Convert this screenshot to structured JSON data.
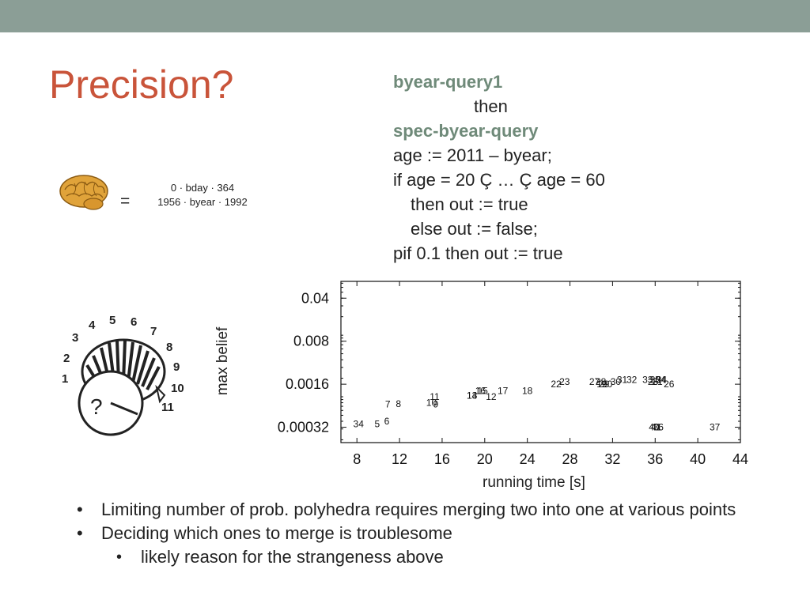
{
  "slide": {
    "title": "Precision?",
    "code": {
      "line1": "byear-query1",
      "line2": "then",
      "line3": "spec-byear-query",
      "line4": "age := 2011 – byear;",
      "line5": "if age = 20 Ç … Ç age = 60",
      "line6": "then out := true",
      "line7": "else out := false;",
      "line8": "pif 0.1 then out := true"
    },
    "equals": "=",
    "constraints": [
      "0 · bday · 364",
      "1956 · byear · 1992"
    ],
    "dial": {
      "numbers": [
        "1",
        "2",
        "3",
        "4",
        "5",
        "6",
        "7",
        "8",
        "9",
        "10",
        "11"
      ],
      "question": "?"
    },
    "bullets": [
      "Limiting number of prob. polyhedra requires merging two into one at various points",
      "Deciding which ones to merge is troublesome"
    ],
    "subbullets": [
      "likely reason for the strangeness above"
    ]
  },
  "colors": {
    "title": "#c9543a",
    "topbar": "#8b9e96",
    "keyword": "#6f8a79"
  },
  "chart_data": {
    "type": "scatter",
    "xlabel": "running time [s]",
    "ylabel": "max belief",
    "xlim": [
      6.5,
      44
    ],
    "ylim_log": [
      0.00018,
      0.075
    ],
    "x_ticks": [
      8,
      12,
      16,
      20,
      24,
      28,
      32,
      36,
      40,
      44
    ],
    "y_ticks": [
      0.04,
      0.008,
      0.0016,
      0.00032
    ],
    "y_tick_labels": [
      "0.04",
      "0.008",
      "0.0016",
      "0.00032"
    ],
    "marker": "point index label",
    "points": [
      {
        "label": "3",
        "x": 7.9,
        "y": 0.00036
      },
      {
        "label": "4",
        "x": 8.4,
        "y": 0.00036
      },
      {
        "label": "5",
        "x": 9.9,
        "y": 0.00036
      },
      {
        "label": "6",
        "x": 10.8,
        "y": 0.0004
      },
      {
        "label": "7",
        "x": 10.9,
        "y": 0.00075
      },
      {
        "label": "8",
        "x": 11.9,
        "y": 0.00077
      },
      {
        "label": "9",
        "x": 15.4,
        "y": 0.00075
      },
      {
        "label": "10",
        "x": 15.0,
        "y": 0.0008
      },
      {
        "label": "11",
        "x": 15.3,
        "y": 0.001
      },
      {
        "label": "12",
        "x": 20.6,
        "y": 0.001
      },
      {
        "label": "13",
        "x": 18.8,
        "y": 0.00105
      },
      {
        "label": "14",
        "x": 18.8,
        "y": 0.00105
      },
      {
        "label": "15",
        "x": 19.8,
        "y": 0.00125
      },
      {
        "label": "16",
        "x": 19.6,
        "y": 0.00125
      },
      {
        "label": "17",
        "x": 21.7,
        "y": 0.00125
      },
      {
        "label": "18",
        "x": 24.0,
        "y": 0.00125
      },
      {
        "label": "22",
        "x": 26.7,
        "y": 0.0016
      },
      {
        "label": "23",
        "x": 27.5,
        "y": 0.00175
      },
      {
        "label": "27",
        "x": 30.3,
        "y": 0.00175
      },
      {
        "label": "28",
        "x": 30.9,
        "y": 0.00175
      },
      {
        "label": "29",
        "x": 31.2,
        "y": 0.0016
      },
      {
        "label": "19",
        "x": 31.0,
        "y": 0.0016
      },
      {
        "label": "20",
        "x": 31.5,
        "y": 0.0016
      },
      {
        "label": "30",
        "x": 32.3,
        "y": 0.00175
      },
      {
        "label": "31",
        "x": 32.9,
        "y": 0.0019
      },
      {
        "label": "32",
        "x": 33.8,
        "y": 0.0019
      },
      {
        "label": "33",
        "x": 35.3,
        "y": 0.0019
      },
      {
        "label": "35",
        "x": 36.0,
        "y": 0.0019
      },
      {
        "label": "34",
        "x": 36.5,
        "y": 0.0019
      },
      {
        "label": "25",
        "x": 35.8,
        "y": 0.00175
      },
      {
        "label": "21",
        "x": 36.2,
        "y": 0.00175
      },
      {
        "label": "24",
        "x": 36.6,
        "y": 0.0019
      },
      {
        "label": "26",
        "x": 37.3,
        "y": 0.0016
      },
      {
        "label": "40",
        "x": 35.9,
        "y": 0.00032
      },
      {
        "label": "41",
        "x": 36.1,
        "y": 0.00032
      },
      {
        "label": "36",
        "x": 36.3,
        "y": 0.00032
      },
      {
        "label": "37",
        "x": 41.6,
        "y": 0.00032
      }
    ]
  }
}
